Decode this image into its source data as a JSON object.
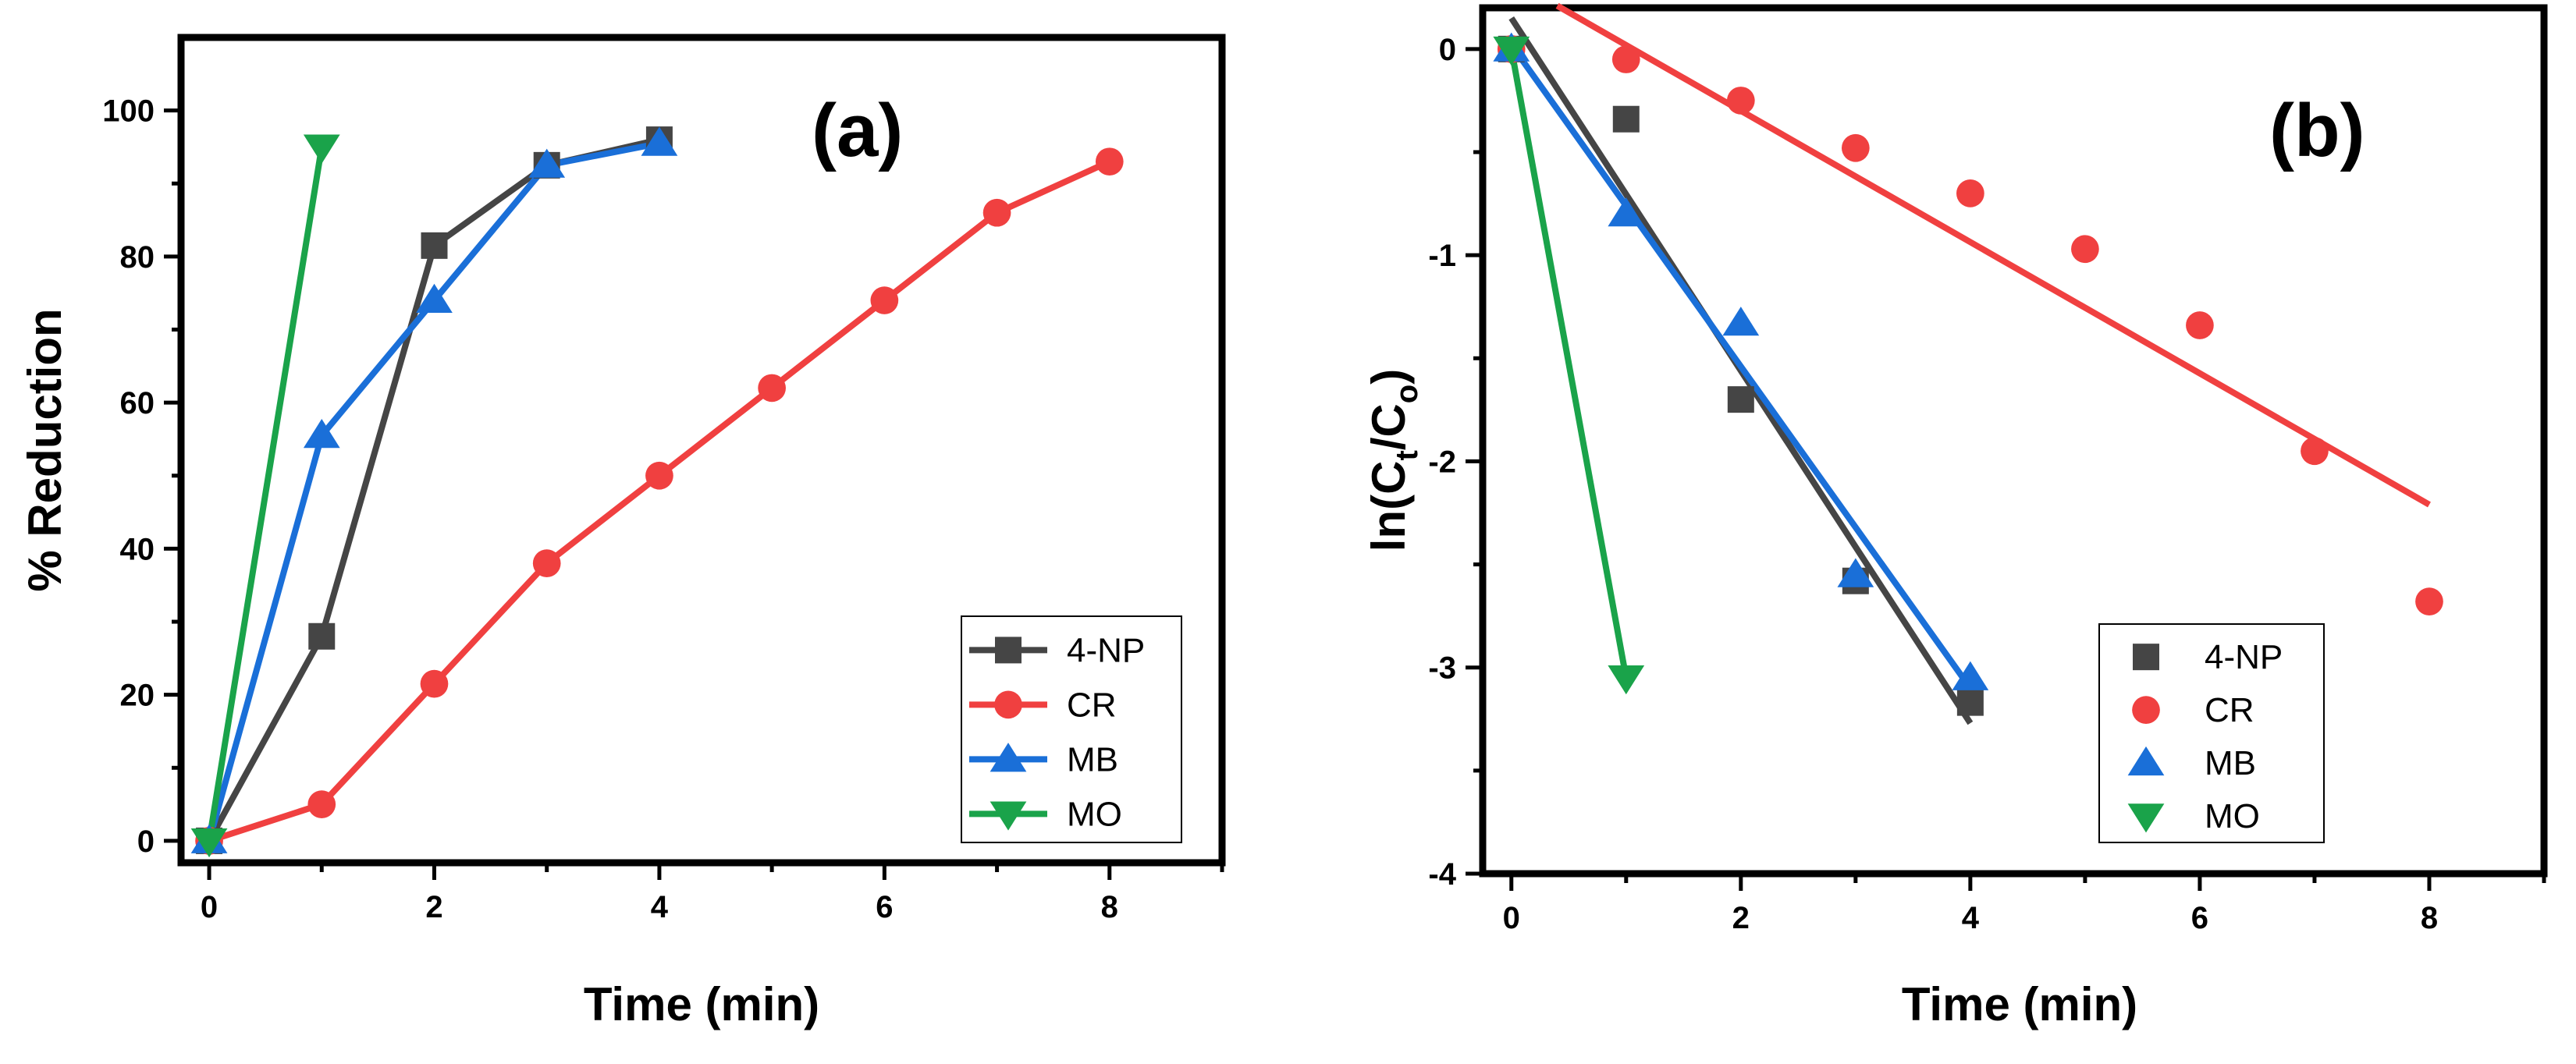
{
  "chart_data": [
    {
      "type": "line",
      "panel_label": "(a)",
      "xlabel": "Time (min)",
      "ylabel": "% Reduction",
      "xlim": [
        -0.25,
        9
      ],
      "ylim": [
        -3,
        110
      ],
      "xticks": [
        0,
        2,
        4,
        6,
        8
      ],
      "yticks": [
        0,
        20,
        40,
        60,
        80,
        100
      ],
      "legend_position": "bottom-right",
      "series": [
        {
          "name": "4-NP",
          "color": "#454545",
          "marker": "square",
          "connect": "line",
          "x": [
            0,
            1,
            2,
            3,
            4
          ],
          "y": [
            0,
            28,
            81.5,
            92.5,
            96
          ]
        },
        {
          "name": "CR",
          "color": "#f04040",
          "marker": "circle",
          "connect": "line",
          "x": [
            0,
            1,
            2,
            3,
            4,
            5,
            6,
            7,
            8
          ],
          "y": [
            0,
            5,
            21.5,
            38,
            50,
            62,
            74,
            86,
            93
          ]
        },
        {
          "name": "MB",
          "color": "#1a6fd8",
          "marker": "triangle-up",
          "connect": "line",
          "x": [
            0,
            1,
            2,
            3,
            4
          ],
          "y": [
            0,
            55.5,
            74,
            92.5,
            95.5
          ]
        },
        {
          "name": "MO",
          "color": "#1aa34a",
          "marker": "triangle-down",
          "connect": "line",
          "x": [
            0,
            1
          ],
          "y": [
            0,
            95
          ]
        }
      ]
    },
    {
      "type": "scatter",
      "panel_label": "(b)",
      "xlabel": "Time (min)",
      "ylabel_main": "ln(C",
      "ylabel_sub1": "t",
      "ylabel_mid": "/C",
      "ylabel_sub2": "o",
      "ylabel_end": ")",
      "xlim": [
        -0.25,
        9
      ],
      "ylim": [
        -4,
        0.2
      ],
      "xticks": [
        0,
        2,
        4,
        6,
        8
      ],
      "yticks": [
        0,
        -1,
        -2,
        -3,
        -4
      ],
      "legend_position": "bottom-center",
      "series": [
        {
          "name": "4-NP",
          "color": "#454545",
          "marker": "square",
          "x": [
            0,
            1,
            2,
            3,
            4
          ],
          "y": [
            0,
            -0.34,
            -1.7,
            -2.58,
            -3.17
          ],
          "fit": {
            "x": [
              0,
              4
            ],
            "y": [
              0.15,
              -3.27
            ]
          }
        },
        {
          "name": "CR",
          "color": "#f04040",
          "marker": "circle",
          "x": [
            0,
            1,
            2,
            3,
            4,
            5,
            6,
            7,
            8
          ],
          "y": [
            0,
            -0.05,
            -0.25,
            -0.48,
            -0.7,
            -0.97,
            -1.34,
            -1.95,
            -2.68
          ],
          "fit": {
            "x": [
              0.4,
              8
            ],
            "y": [
              0.21,
              -2.21
            ]
          }
        },
        {
          "name": "MB",
          "color": "#1a6fd8",
          "marker": "triangle-up",
          "x": [
            0,
            1,
            2,
            3,
            4
          ],
          "y": [
            0,
            -0.8,
            -1.33,
            -2.55,
            -3.05
          ],
          "fit": {
            "x": [
              0,
              4
            ],
            "y": [
              0.02,
              -3.1
            ]
          }
        },
        {
          "name": "MO",
          "color": "#1aa34a",
          "marker": "triangle-down",
          "x": [
            0,
            1
          ],
          "y": [
            0,
            -3.05
          ],
          "fit": {
            "x": [
              0,
              1
            ],
            "y": [
              0,
              -3.05
            ]
          }
        }
      ]
    }
  ]
}
